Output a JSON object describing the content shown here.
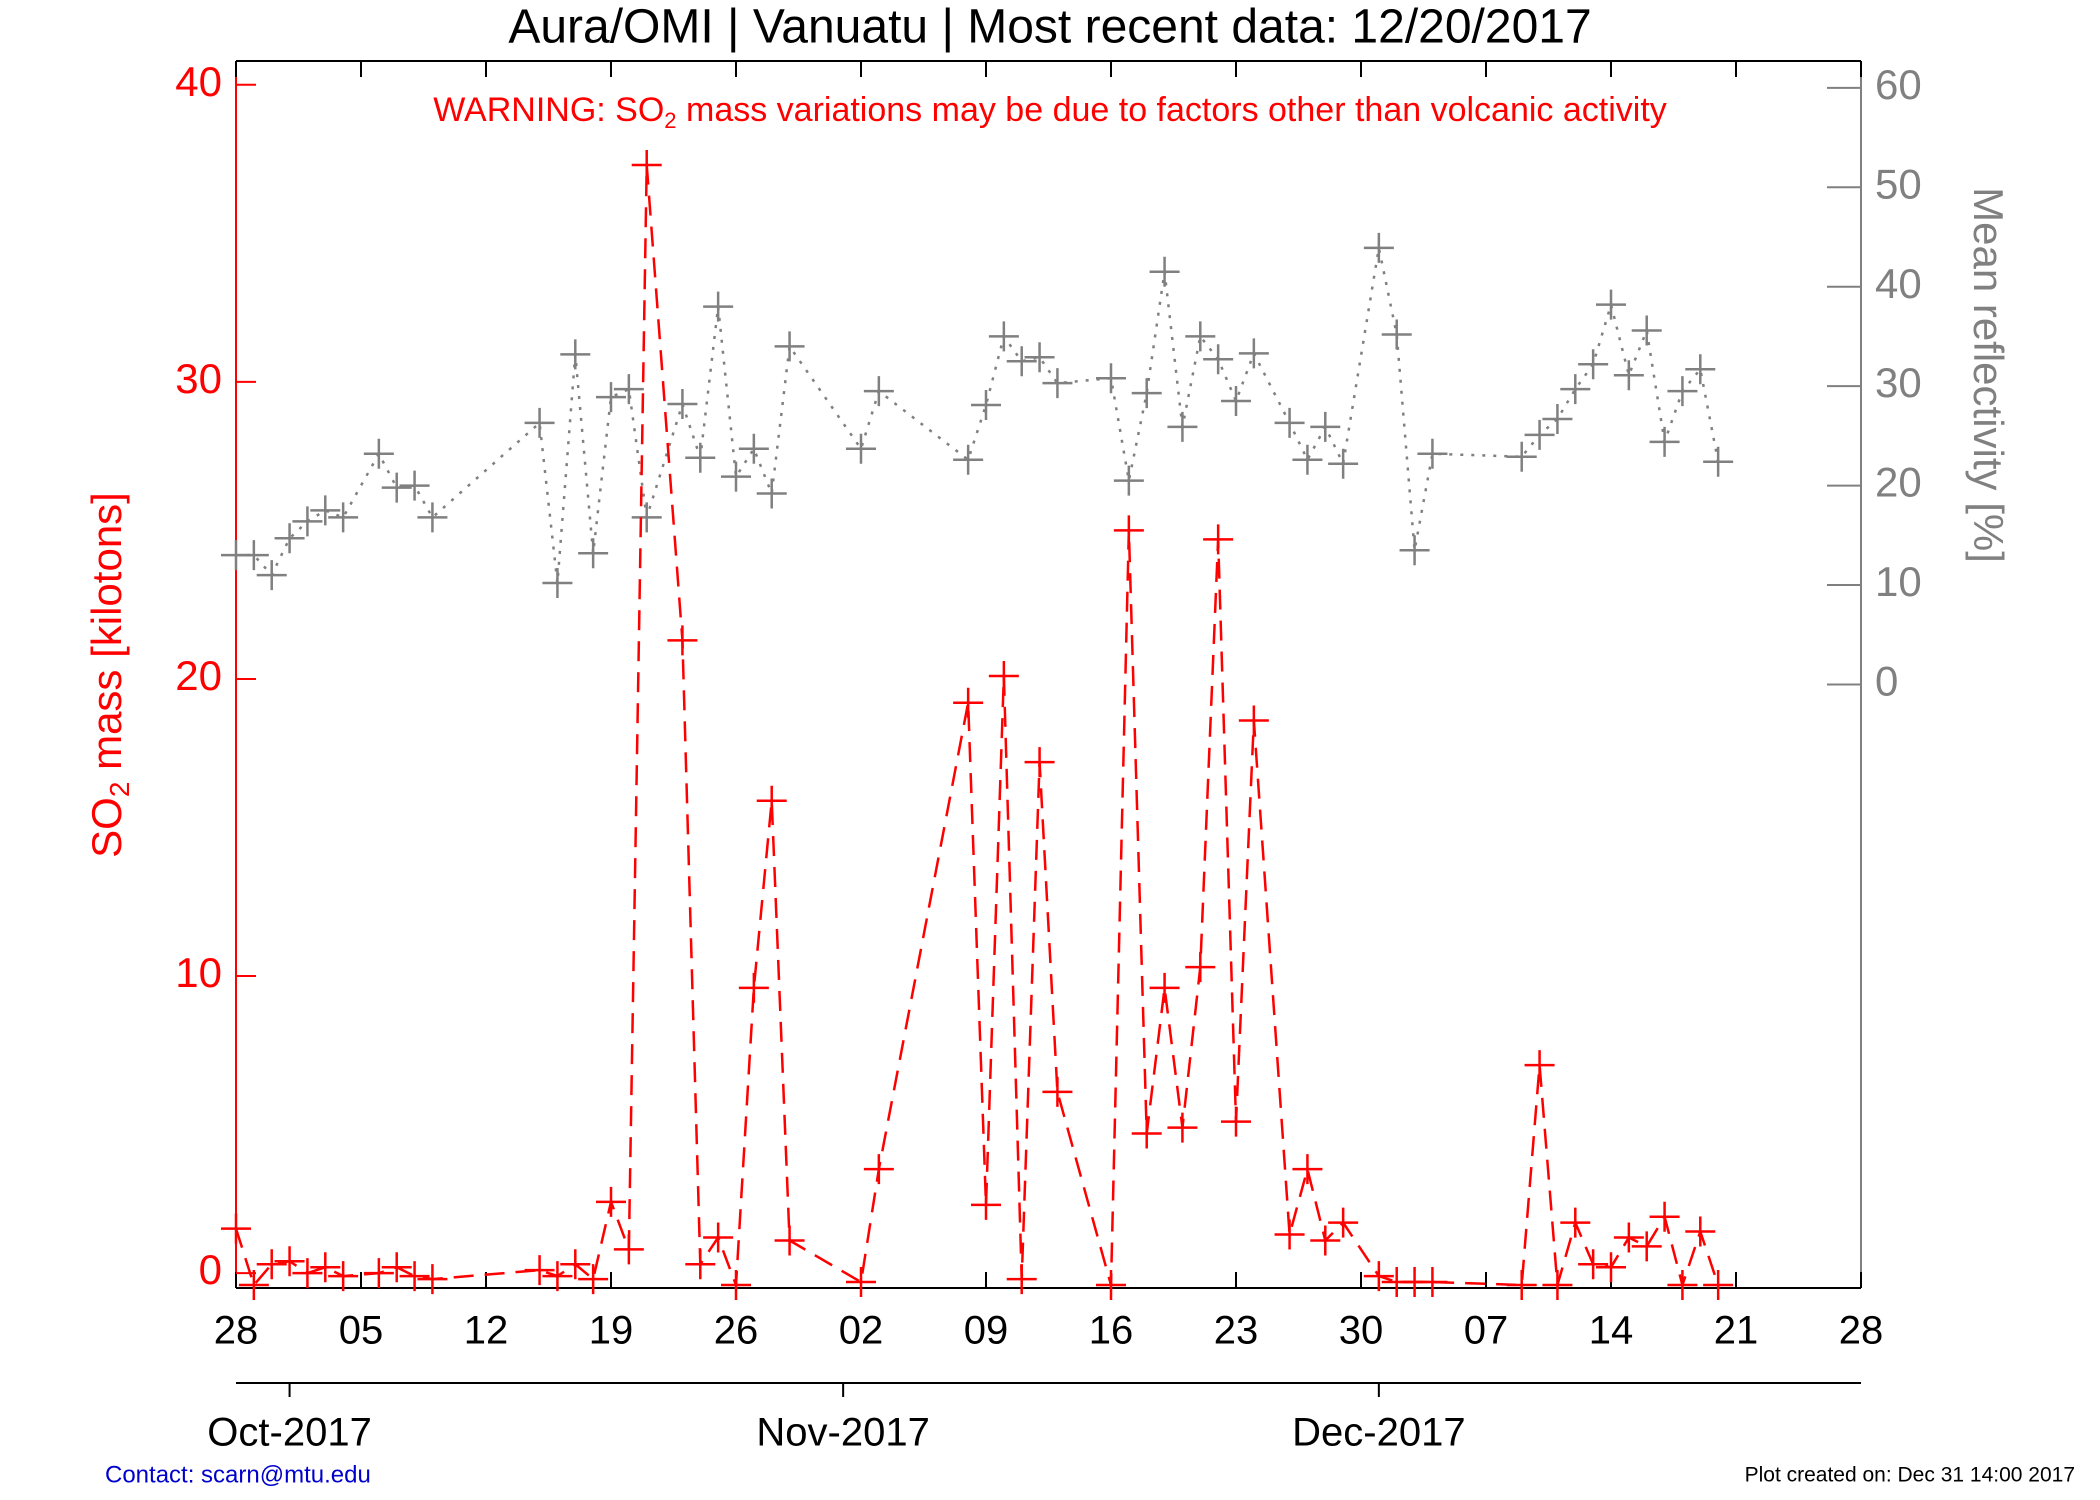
{
  "chart_data": {
    "type": "line",
    "title": "Aura/OMI | Vanuatu | Most recent data: 12/20/2017",
    "warning": {
      "before": "WARNING: SO",
      "sub": "2",
      "after": " mass variations may be due to factors other than volcanic activity"
    },
    "ylabel": {
      "before": "SO",
      "sub": "2",
      "after": " mass [kilotons]"
    },
    "y2label": "Mean reflectivity [%]",
    "contact": "Contact: scarn@mtu.edu",
    "created": "Plot created on: Dec 31 14:00 2017",
    "xlim": [
      0,
      91
    ],
    "xticks": [
      {
        "value": 0,
        "label": "28"
      },
      {
        "value": 7,
        "label": "05"
      },
      {
        "value": 14,
        "label": "12"
      },
      {
        "value": 21,
        "label": "19"
      },
      {
        "value": 28,
        "label": "26"
      },
      {
        "value": 35,
        "label": "02"
      },
      {
        "value": 42,
        "label": "09"
      },
      {
        "value": 49,
        "label": "16"
      },
      {
        "value": 56,
        "label": "23"
      },
      {
        "value": 63,
        "label": "30"
      },
      {
        "value": 70,
        "label": "07"
      },
      {
        "value": 77,
        "label": "14"
      },
      {
        "value": 84,
        "label": "21"
      },
      {
        "value": 91,
        "label": "28"
      }
    ],
    "monthticks": [
      {
        "value": 3,
        "label": "Oct-2017"
      },
      {
        "value": 34,
        "label": "Nov-2017"
      },
      {
        "value": 64,
        "label": "Dec-2017"
      }
    ],
    "ylim": [
      -0.5,
      40.8
    ],
    "yticks": [
      0,
      10,
      20,
      30,
      40
    ],
    "y2lim": [
      -60.7,
      62.7
    ],
    "y2ticks": [
      0,
      10,
      20,
      30,
      40,
      50,
      60
    ],
    "x": [
      0,
      1,
      2,
      3,
      4,
      5,
      6,
      8,
      9,
      10,
      11,
      17,
      18,
      19,
      20,
      21,
      22,
      23,
      25,
      26,
      27,
      28,
      29,
      30,
      31,
      35,
      36,
      41,
      42,
      43,
      44,
      45,
      46,
      49,
      50,
      51,
      52,
      53,
      54,
      55,
      56,
      57,
      59,
      60,
      61,
      62,
      64,
      65,
      66,
      67,
      72,
      73,
      74,
      75,
      76,
      77,
      78,
      79,
      80,
      81,
      82,
      83
    ],
    "series": [
      {
        "name": "SO2 mass",
        "color": "#ff0000",
        "axis": "y",
        "style": "dashed",
        "values": [
          1.5,
          -0.4,
          0.3,
          0.4,
          0,
          0.2,
          -0.1,
          0,
          0.2,
          -0.1,
          -0.2,
          0.1,
          -0.1,
          0.3,
          -0.2,
          2.4,
          0.8,
          37.3,
          21.3,
          0.3,
          1.2,
          -0.4,
          9.6,
          15.9,
          1.1,
          -0.3,
          3.5,
          19.2,
          2.3,
          20.1,
          -0.2,
          17.2,
          6.1,
          -0.4,
          25.0,
          4.7,
          9.6,
          4.9,
          10.3,
          24.7,
          5.1,
          18.6,
          1.3,
          3.5,
          1.1,
          1.7,
          -0.1,
          -0.3,
          -0.3,
          -0.3,
          -0.4,
          7.0,
          -0.4,
          1.7,
          0.3,
          0.2,
          1.2,
          0.9,
          1.9,
          -0.4,
          1.4,
          -0.4
        ]
      },
      {
        "name": "Mean reflectivity",
        "color": "#808080",
        "axis": "y2",
        "style": "dotted",
        "values": [
          13,
          13,
          11,
          14.7,
          16.4,
          17.5,
          16.8,
          23.2,
          19.8,
          20,
          16.8,
          26.3,
          10.2,
          33.2,
          13.2,
          28.9,
          29.7,
          16.8,
          28.2,
          22.8,
          38,
          20.9,
          23.7,
          19.2,
          34,
          23.7,
          29.5,
          22.6,
          28.1,
          35,
          32.5,
          32.9,
          30.3,
          30.8,
          20.5,
          29.3,
          41.5,
          25.9,
          35,
          32.7,
          28.5,
          33.3,
          26.3,
          22.6,
          25.9,
          22.2,
          43.9,
          35.2,
          13.5,
          23.2,
          22.9,
          25.1,
          26.7,
          29.7,
          32.2,
          38.2,
          31.1,
          35.6,
          24.4,
          29.5,
          31.7,
          22.4
        ]
      }
    ]
  }
}
